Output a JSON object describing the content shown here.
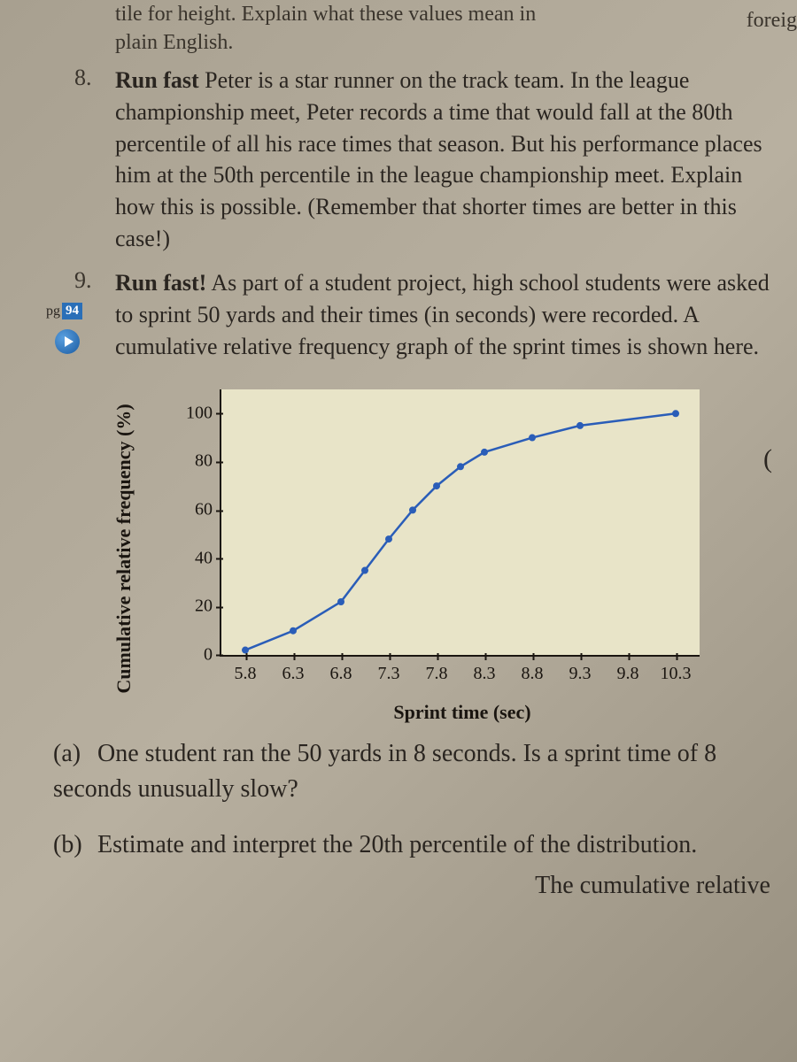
{
  "fragment_top_line1": "tile for height. Explain what these values mean in",
  "fragment_top_line2": "plain English.",
  "top_right_fragment": "foreig",
  "p8": {
    "num": "8.",
    "text": "<span class='bold'>Run fast</span> Peter is a star runner on the track team. In the league championship meet, Peter records a time that would fall at the 80th percentile of all his race times that season. But his performance places him at the 50th percentile in the league championship meet. Explain how this is possible. (Remember that shorter times are better in this case!)"
  },
  "p9": {
    "num": "9.",
    "pg_label": "pg",
    "pg_num": "94",
    "text": "<span class='bold'>Run fast!</span> As part of a student project, high school students were asked to sprint 50 yards and their times (in seconds) were recorded. A cumulative relative frequency graph of the sprint times is shown here."
  },
  "paren_right": "(",
  "chart": {
    "type": "line",
    "ylabel": "Cumulative relative frequency (%)",
    "xlabel": "Sprint time (sec)",
    "xticks": [
      "5.8",
      "6.3",
      "6.8",
      "7.3",
      "7.8",
      "8.3",
      "8.8",
      "9.3",
      "9.8",
      "10.3"
    ],
    "yticks": [
      "0",
      "20",
      "40",
      "60",
      "80",
      "100"
    ],
    "ylim": [
      0,
      110
    ],
    "xlim": [
      5.55,
      10.55
    ],
    "line_color": "#2a5db8",
    "marker_color": "#2a5db8",
    "background_color": "#e8e4c8",
    "points": [
      {
        "x": 5.8,
        "y": 2
      },
      {
        "x": 6.3,
        "y": 10
      },
      {
        "x": 6.8,
        "y": 22
      },
      {
        "x": 7.05,
        "y": 35
      },
      {
        "x": 7.3,
        "y": 48
      },
      {
        "x": 7.55,
        "y": 60
      },
      {
        "x": 7.8,
        "y": 70
      },
      {
        "x": 8.05,
        "y": 78
      },
      {
        "x": 8.3,
        "y": 84
      },
      {
        "x": 8.8,
        "y": 90
      },
      {
        "x": 9.3,
        "y": 95
      },
      {
        "x": 10.3,
        "y": 100
      }
    ]
  },
  "qa": {
    "a_label": "(a)",
    "a_text": "One student ran the 50 yards in 8 seconds. Is a sprint time of 8 seconds unusually slow?",
    "b_label": "(b)",
    "b_text": "Estimate and interpret the 20th percentile of the distribution."
  },
  "bottom_fragment": "The cumulative relative"
}
